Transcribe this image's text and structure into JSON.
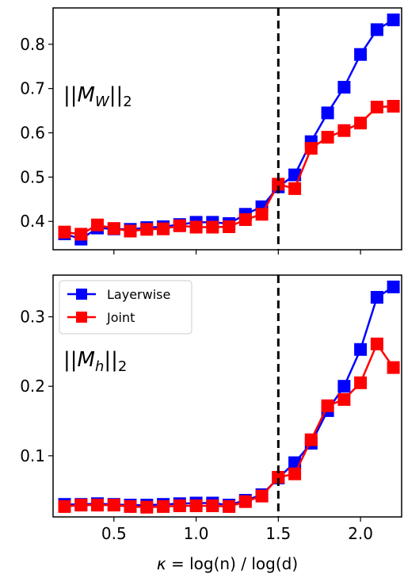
{
  "chart_data": [
    {
      "type": "line",
      "panel": "top",
      "annotation": "||M_W||_2",
      "annotation_parts": {
        "pre": "||M",
        "sub": "W",
        "post": "||",
        "post_sub": "2"
      },
      "x": [
        0.2,
        0.3,
        0.4,
        0.5,
        0.6,
        0.7,
        0.8,
        0.9,
        1.0,
        1.1,
        1.2,
        1.3,
        1.4,
        1.5,
        1.6,
        1.7,
        1.8,
        1.9,
        2.0,
        2.1,
        2.2
      ],
      "series": [
        {
          "name": "Layerwise",
          "color": "#0000ff",
          "values": [
            0.372,
            0.36,
            0.385,
            0.383,
            0.382,
            0.386,
            0.388,
            0.393,
            0.398,
            0.398,
            0.395,
            0.416,
            0.433,
            0.478,
            0.505,
            0.58,
            0.645,
            0.703,
            0.777,
            0.833,
            0.855
          ]
        },
        {
          "name": "Joint",
          "color": "#ff0000",
          "values": [
            0.376,
            0.371,
            0.392,
            0.384,
            0.378,
            0.382,
            0.383,
            0.39,
            0.387,
            0.387,
            0.388,
            0.404,
            0.416,
            0.484,
            0.474,
            0.565,
            0.59,
            0.605,
            0.622,
            0.658,
            0.66
          ]
        }
      ],
      "ylim": [
        0.336,
        0.882
      ],
      "yticks": [
        "0.4",
        "0.5",
        "0.6",
        "0.7",
        "0.8"
      ],
      "ytick_values": [
        0.4,
        0.5,
        0.6,
        0.7,
        0.8
      ],
      "vline_x": 1.5
    },
    {
      "type": "line",
      "panel": "bottom",
      "annotation": "||M_h||_2",
      "annotation_parts": {
        "pre": "||M",
        "sub": "h",
        "post": "||",
        "post_sub": "2"
      },
      "x": [
        0.2,
        0.3,
        0.4,
        0.5,
        0.6,
        0.7,
        0.8,
        0.9,
        1.0,
        1.1,
        1.2,
        1.3,
        1.4,
        1.5,
        1.6,
        1.7,
        1.8,
        1.9,
        2.0,
        2.1,
        2.2
      ],
      "series": [
        {
          "name": "Layerwise",
          "color": "#0000ff",
          "values": [
            0.03,
            0.03,
            0.031,
            0.03,
            0.029,
            0.029,
            0.03,
            0.031,
            0.032,
            0.032,
            0.029,
            0.036,
            0.044,
            0.068,
            0.09,
            0.118,
            0.165,
            0.2,
            0.253,
            0.328,
            0.343
          ]
        },
        {
          "name": "Joint",
          "color": "#ff0000",
          "values": [
            0.027,
            0.029,
            0.029,
            0.029,
            0.027,
            0.026,
            0.027,
            0.028,
            0.028,
            0.028,
            0.027,
            0.034,
            0.042,
            0.069,
            0.074,
            0.123,
            0.172,
            0.181,
            0.205,
            0.261,
            0.227
          ]
        }
      ],
      "ylim": [
        0.012,
        0.36
      ],
      "yticks": [
        "0.1",
        "0.2",
        "0.3"
      ],
      "ytick_values": [
        0.1,
        0.2,
        0.3
      ],
      "vline_x": 1.5,
      "legend": {
        "placement": "top-left",
        "entries": [
          "Layerwise",
          "Joint"
        ]
      }
    }
  ],
  "xaxis": {
    "xlim": [
      0.13,
      2.25
    ],
    "ticks": [
      "0.5",
      "1.0",
      "1.5",
      "2.0"
    ],
    "tick_values": [
      0.5,
      1.0,
      1.5,
      2.0
    ],
    "label_kappa": "κ",
    "label_eq": "=",
    "label_rest": "log(n) / log(d)"
  }
}
